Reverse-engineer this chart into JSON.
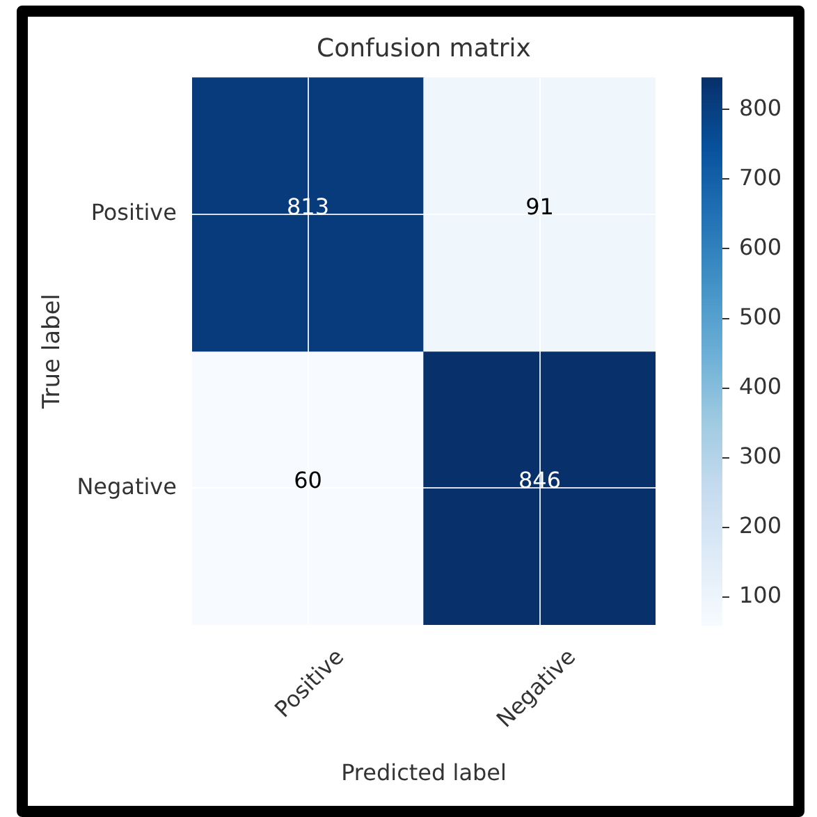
{
  "chart_data": {
    "type": "heatmap",
    "title": "Confusion matrix",
    "xlabel": "Predicted label",
    "ylabel": "True label",
    "categories": [
      "Positive",
      "Negative"
    ],
    "y_categories": [
      "Positive",
      "Negative"
    ],
    "cells": [
      [
        813,
        91
      ],
      [
        60,
        846
      ]
    ],
    "data_labels": true,
    "clim": [
      60,
      846
    ],
    "cticks": [
      100,
      200,
      300,
      400,
      500,
      600,
      700,
      800
    ],
    "grid": true
  }
}
